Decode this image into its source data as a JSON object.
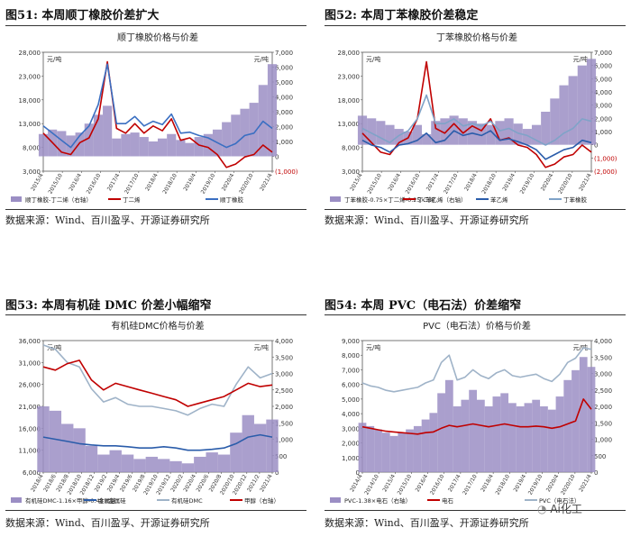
{
  "figures": [
    {
      "number": "图51:",
      "title": "本周顺丁橡胶价差扩大",
      "source": "数据来源：Wind、百川盈孚、开源证券研究所"
    },
    {
      "number": "图52:",
      "title": "本周丁苯橡胶价差稳定",
      "source": "数据来源：Wind、百川盈孚、开源证券研究所"
    },
    {
      "number": "图53:",
      "title": "本周有机硅 DMC 价差小幅缩窄",
      "source": "数据来源：Wind、百川盈孚、开源证券研究所"
    },
    {
      "number": "图54:",
      "title": "本周 PVC（电石法）价差缩窄",
      "source": "数据来源：Wind、百川盈孚、开源证券研究所"
    }
  ],
  "watermark": "Ai化工",
  "chart_data": [
    {
      "type": "line",
      "title": "顺丁橡胶价格与价差",
      "left_unit": "元/吨",
      "right_unit": "元/吨",
      "y_ticks_left": [
        "28,000",
        "23,000",
        "18,000",
        "13,000",
        "8,000",
        "3,000"
      ],
      "y_ticks_right": [
        "7,000",
        "6,000",
        "5,000",
        "4,000",
        "3,000",
        "2,000",
        "1,000",
        "0",
        "(1,000)"
      ],
      "ylim_left": [
        3000,
        28000
      ],
      "ylim_right": [
        -1000,
        7000
      ],
      "x_ticks": [
        "2015/4",
        "2015/10",
        "2016/4",
        "2016/10",
        "2017/4",
        "2017/10",
        "2018/4",
        "2018/10",
        "2019/4",
        "2019/10",
        "2020/4",
        "2020/10",
        "2021/4"
      ],
      "x": [
        "2015/4",
        "2015/7",
        "2015/10",
        "2016/1",
        "2016/4",
        "2016/7",
        "2016/10",
        "2017/1",
        "2017/4",
        "2017/7",
        "2017/10",
        "2018/1",
        "2018/4",
        "2018/7",
        "2018/10",
        "2019/1",
        "2019/4",
        "2019/7",
        "2019/10",
        "2020/1",
        "2020/4",
        "2020/7",
        "2020/10",
        "2021/1",
        "2021/4",
        "2021/6"
      ],
      "legend": [
        "顺丁橡胶-丁二烯（右轴）",
        "丁二烯",
        "顺丁橡胶"
      ],
      "series": [
        {
          "name": "顺丁橡胶-丁二烯（右轴）",
          "kind": "area",
          "axis": "right",
          "color": "#9b8ec4",
          "values": [
            1500,
            1800,
            1700,
            1400,
            1600,
            2200,
            2800,
            3400,
            1200,
            1500,
            1600,
            1300,
            1000,
            1200,
            1500,
            1100,
            900,
            1300,
            1500,
            1800,
            2300,
            2800,
            3200,
            3600,
            4800,
            6200
          ]
        },
        {
          "name": "丁二烯",
          "kind": "line",
          "axis": "left",
          "color": "#c00000",
          "values": [
            11000,
            9000,
            7000,
            6500,
            9000,
            10000,
            14000,
            26000,
            12000,
            11000,
            13000,
            11000,
            12500,
            11500,
            14000,
            9500,
            10000,
            8500,
            8000,
            6500,
            3800,
            4500,
            6000,
            6500,
            8500,
            7000
          ]
        },
        {
          "name": "顺丁橡胶",
          "kind": "line",
          "axis": "left",
          "color": "#3a6fc2",
          "values": [
            12500,
            11000,
            9500,
            8000,
            10500,
            12500,
            17000,
            25500,
            13000,
            13000,
            14500,
            12500,
            13500,
            12800,
            15000,
            11000,
            11200,
            10500,
            10000,
            9000,
            8000,
            8800,
            10500,
            11000,
            13500,
            12000
          ]
        }
      ]
    },
    {
      "type": "line",
      "title": "丁苯橡胶价格与价差",
      "left_unit": "元/吨",
      "right_unit": "元/吨",
      "y_ticks_left": [
        "28,000",
        "23,000",
        "18,000",
        "13,000",
        "8,000",
        "3,000"
      ],
      "y_ticks_right": [
        "7,000",
        "6,000",
        "5,000",
        "4,000",
        "3,000",
        "2,000",
        "1,000",
        "0",
        "(1,000)",
        "(2,000)"
      ],
      "ylim_left": [
        3000,
        28000
      ],
      "ylim_right": [
        -2000,
        7000
      ],
      "x_ticks": [
        "2015/4",
        "2015/10",
        "2016/4",
        "2016/10",
        "2017/4",
        "2017/10",
        "2018/4",
        "2018/10",
        "2019/4",
        "2019/10",
        "2020/4",
        "2020/10",
        "2021/4"
      ],
      "x": [
        "2015/4",
        "2015/7",
        "2015/10",
        "2016/1",
        "2016/4",
        "2016/7",
        "2016/10",
        "2017/1",
        "2017/4",
        "2017/7",
        "2017/10",
        "2018/1",
        "2018/4",
        "2018/7",
        "2018/10",
        "2019/1",
        "2019/4",
        "2019/7",
        "2019/10",
        "2020/1",
        "2020/4",
        "2020/7",
        "2020/10",
        "2021/1",
        "2021/4",
        "2021/6"
      ],
      "legend": [
        "丁苯橡胶-0.75×丁二烯-0.25×苯乙烯（右轴）",
        "丁二烯",
        "苯乙烯",
        "丁苯橡胶"
      ],
      "series": [
        {
          "name": "丁苯橡胶-0.75×丁二烯-0.25×苯乙烯（右轴）",
          "kind": "area",
          "axis": "right",
          "color": "#9b8ec4",
          "values": [
            2200,
            2000,
            1800,
            1500,
            1200,
            1000,
            1500,
            800,
            1800,
            2000,
            2200,
            2000,
            1800,
            1600,
            1500,
            1800,
            2000,
            1600,
            1200,
            1500,
            2500,
            3500,
            4500,
            5200,
            6000,
            6500
          ]
        },
        {
          "name": "丁二烯",
          "kind": "line",
          "axis": "left",
          "color": "#c00000",
          "values": [
            11000,
            9000,
            7000,
            6500,
            9000,
            10000,
            14000,
            26000,
            12000,
            11000,
            13000,
            11000,
            12500,
            11500,
            14000,
            9500,
            10000,
            8500,
            8000,
            6500,
            3800,
            4500,
            6000,
            6500,
            8500,
            7000
          ]
        },
        {
          "name": "苯乙烯",
          "kind": "line",
          "axis": "left",
          "color": "#2a5caa",
          "values": [
            9500,
            8500,
            8000,
            7000,
            8500,
            8800,
            9500,
            11000,
            9000,
            9500,
            11500,
            10500,
            11000,
            10500,
            11500,
            9500,
            9800,
            9200,
            8500,
            7500,
            5500,
            6500,
            7500,
            8000,
            9500,
            9000
          ]
        },
        {
          "name": "丁苯橡胶",
          "kind": "line",
          "axis": "left",
          "color": "#7fa3c8",
          "values": [
            12000,
            11000,
            10000,
            9000,
            10500,
            11500,
            14000,
            19000,
            13000,
            13000,
            14000,
            12500,
            13000,
            12500,
            13500,
            11500,
            12000,
            11000,
            10500,
            9500,
            8500,
            9500,
            11000,
            12000,
            14000,
            13500
          ]
        }
      ]
    },
    {
      "type": "line",
      "title": "有机硅DMC价格与价差",
      "left_unit": "元/吨",
      "right_unit": "元/吨",
      "y_ticks_left": [
        "36,000",
        "31,000",
        "26,000",
        "21,000",
        "16,000",
        "11,000",
        "6,000"
      ],
      "y_ticks_right": [
        "4,000",
        "3,500",
        "3,000",
        "2,500",
        "2,000",
        "1,500",
        "1,000",
        "500",
        "0"
      ],
      "ylim_left": [
        6000,
        36000
      ],
      "ylim_right": [
        0,
        4000
      ],
      "x_ticks": [
        "2018/4",
        "2018/6",
        "2018/8",
        "2018/10",
        "2018/12",
        "2019/2",
        "2019/4",
        "2019/6",
        "2019/8",
        "2019/10",
        "2019/12",
        "2020/2",
        "2020/4",
        "2020/6",
        "2020/8",
        "2020/10",
        "2020/12",
        "2021/2",
        "2021/4"
      ],
      "x": [
        "2018/4",
        "2018/6",
        "2018/8",
        "2018/10",
        "2018/12",
        "2019/2",
        "2019/4",
        "2019/6",
        "2019/8",
        "2019/10",
        "2019/12",
        "2020/2",
        "2020/4",
        "2020/6",
        "2020/8",
        "2020/10",
        "2020/12",
        "2021/2",
        "2021/4",
        "2021/6"
      ],
      "legend": [
        "有机硅DMC-1.16×甲醇-0.48×金属硅",
        "金属硅",
        "有机硅DMC",
        "甲醇（右轴）"
      ],
      "series": [
        {
          "name": "有机硅DMC-1.16×甲醇-0.48×金属硅",
          "kind": "area",
          "axis": "left",
          "color": "#9b8ec4",
          "values": [
            21000,
            20000,
            17000,
            16000,
            12000,
            10000,
            11000,
            10000,
            9000,
            9500,
            9000,
            8500,
            8000,
            9500,
            10500,
            10000,
            15000,
            19000,
            17000,
            18000
          ]
        },
        {
          "name": "金属硅",
          "kind": "line",
          "axis": "left",
          "color": "#2a5caa",
          "values": [
            14000,
            13500,
            13000,
            12500,
            12200,
            12000,
            12000,
            11800,
            11500,
            11500,
            11800,
            11500,
            11000,
            11000,
            11200,
            11500,
            12500,
            14000,
            14500,
            14000
          ]
        },
        {
          "name": "有机硅DMC",
          "kind": "line",
          "axis": "left",
          "color": "#9fb3c8",
          "values": [
            35000,
            34000,
            31000,
            30000,
            25000,
            22000,
            23000,
            21500,
            21000,
            21000,
            20500,
            20000,
            19000,
            20500,
            21500,
            21000,
            26000,
            30000,
            27500,
            28500
          ]
        },
        {
          "name": "甲醇（右轴）",
          "kind": "line",
          "axis": "right",
          "color": "#c00000",
          "values": [
            3200,
            3100,
            3300,
            3400,
            2800,
            2500,
            2700,
            2600,
            2500,
            2400,
            2300,
            2200,
            2000,
            2100,
            2200,
            2300,
            2500,
            2700,
            2600,
            2650
          ]
        }
      ]
    },
    {
      "type": "line",
      "title": "PVC（电石法）价格与价差",
      "left_unit": "元/吨",
      "right_unit": "元/吨",
      "y_ticks_left": [
        "9,000",
        "8,000",
        "7,000",
        "6,000",
        "5,000",
        "4,000",
        "3,000",
        "2,000",
        "1,000",
        "0"
      ],
      "y_ticks_right": [
        "4,000",
        "3,500",
        "3,000",
        "2,500",
        "2,000",
        "1,500",
        "1,000",
        "500",
        "0"
      ],
      "ylim_left": [
        0,
        9000
      ],
      "ylim_right": [
        0,
        4000
      ],
      "x_ticks": [
        "2014/4",
        "2014/10",
        "2015/4",
        "2015/10",
        "2016/4",
        "2016/10",
        "2017/4",
        "2017/10",
        "2018/4",
        "2018/10",
        "2019/4",
        "2019/10",
        "2020/4",
        "2020/10",
        "2021/4"
      ],
      "x": [
        "2014/4",
        "2014/7",
        "2014/10",
        "2015/1",
        "2015/4",
        "2015/7",
        "2015/10",
        "2016/1",
        "2016/4",
        "2016/7",
        "2016/10",
        "2017/1",
        "2017/4",
        "2017/7",
        "2017/10",
        "2018/1",
        "2018/4",
        "2018/7",
        "2018/10",
        "2019/1",
        "2019/4",
        "2019/7",
        "2019/10",
        "2020/1",
        "2020/4",
        "2020/7",
        "2020/10",
        "2021/1",
        "2021/4",
        "2021/6"
      ],
      "legend": [
        "PVC-1.38×电石（右轴）",
        "电石",
        "PVC（电石法）"
      ],
      "series": [
        {
          "name": "PVC-1.38×电石（右轴）",
          "kind": "area",
          "axis": "right",
          "color": "#9b8ec4",
          "values": [
            1500,
            1400,
            1300,
            1200,
            1100,
            1200,
            1300,
            1400,
            1600,
            1800,
            2400,
            2800,
            2000,
            2200,
            2500,
            2200,
            2000,
            2300,
            2400,
            2100,
            2000,
            2100,
            2200,
            2000,
            1900,
            2300,
            2800,
            3100,
            3500,
            3200
          ]
        },
        {
          "name": "电石",
          "kind": "line",
          "axis": "left",
          "color": "#c00000",
          "values": [
            3100,
            3000,
            2900,
            2800,
            2750,
            2700,
            2650,
            2600,
            2700,
            2750,
            3000,
            3200,
            3100,
            3200,
            3300,
            3200,
            3100,
            3200,
            3300,
            3200,
            3100,
            3100,
            3150,
            3100,
            3000,
            3100,
            3300,
            3500,
            5000,
            4300
          ]
        },
        {
          "name": "PVC（电石法）",
          "kind": "line",
          "axis": "left",
          "color": "#9fb3c8",
          "values": [
            6100,
            5900,
            5800,
            5600,
            5500,
            5600,
            5700,
            5800,
            6100,
            6300,
            7500,
            8000,
            6300,
            6500,
            7000,
            6600,
            6400,
            6800,
            7000,
            6600,
            6500,
            6600,
            6700,
            6400,
            6200,
            6700,
            7500,
            7800,
            8500,
            8400
          ]
        }
      ]
    }
  ]
}
